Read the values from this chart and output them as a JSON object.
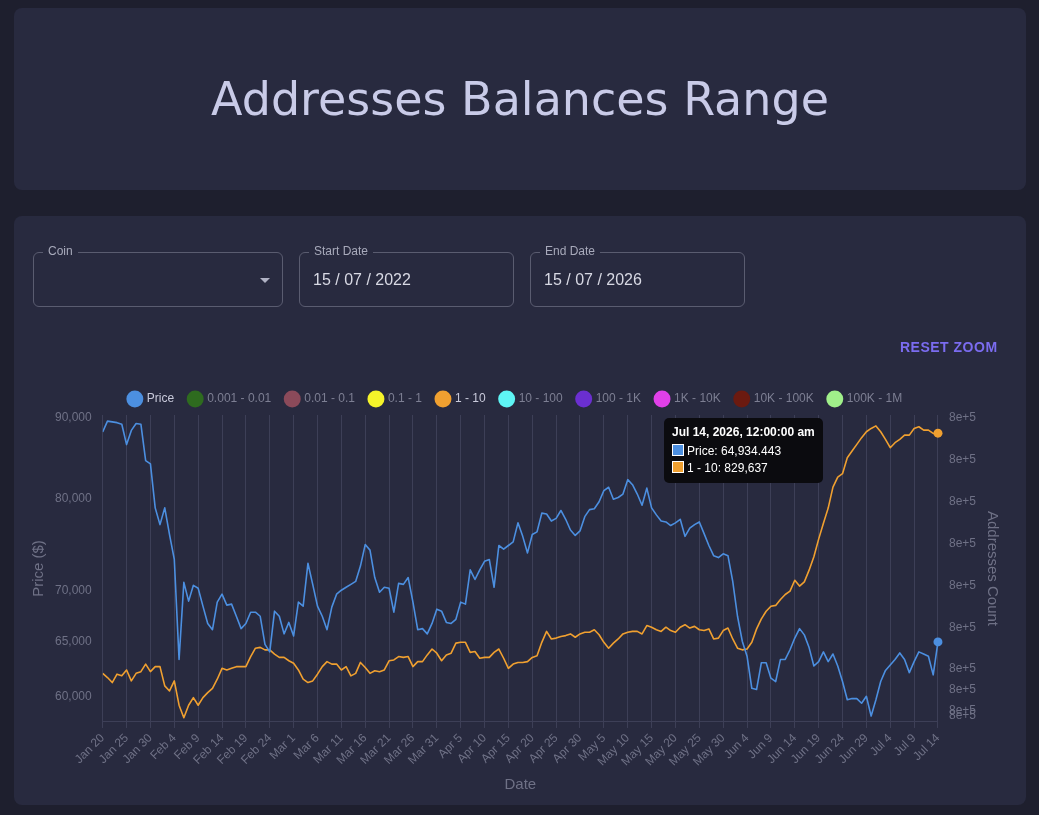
{
  "chart_data": {
    "type": "line",
    "title": "Addresses Balances Range",
    "xlabel": "Date",
    "ylabel": "Price ($)",
    "y2label": "Addresses Count",
    "annotations": [
      "Coin",
      "Start Date",
      "15 / 07 / 2022",
      "End Date",
      "15 / 07 / 2026",
      "RESET ZOOM",
      "Jul 14, 2026, 12:00:00 am",
      "Price: 64,934.443",
      "1 - 10: 829,637"
    ],
    "x": [
      "2026-01-20",
      "2026-01-21",
      "2026-01-22",
      "2026-01-23",
      "2026-01-24",
      "2026-01-25",
      "2026-01-26",
      "2026-01-27",
      "2026-01-28",
      "2026-01-29",
      "2026-01-30",
      "2026-01-31",
      "2026-02-01",
      "2026-02-02",
      "2026-02-03",
      "2026-02-04",
      "2026-02-05",
      "2026-02-06",
      "2026-02-07",
      "2026-02-08",
      "2026-02-09",
      "2026-02-10",
      "2026-02-11",
      "2026-02-12",
      "2026-02-13",
      "2026-02-14",
      "2026-02-15",
      "2026-02-16",
      "2026-02-17",
      "2026-02-18",
      "2026-02-19",
      "2026-02-20",
      "2026-02-21",
      "2026-02-22",
      "2026-02-23",
      "2026-02-24",
      "2026-02-25",
      "2026-02-26",
      "2026-02-27",
      "2026-02-28",
      "2026-03-01",
      "2026-03-02",
      "2026-03-03",
      "2026-03-04",
      "2026-03-05",
      "2026-03-06",
      "2026-03-07",
      "2026-03-08",
      "2026-03-09",
      "2026-03-10",
      "2026-03-11",
      "2026-03-12",
      "2026-03-13",
      "2026-03-14",
      "2026-03-15",
      "2026-03-16",
      "2026-03-17",
      "2026-03-18",
      "2026-03-19",
      "2026-03-20",
      "2026-03-21",
      "2026-03-22",
      "2026-03-23",
      "2026-03-24",
      "2026-03-25",
      "2026-03-26",
      "2026-03-27",
      "2026-03-28",
      "2026-03-29",
      "2026-03-30",
      "2026-03-31",
      "2026-04-01",
      "2026-04-02",
      "2026-04-03",
      "2026-04-04",
      "2026-04-05",
      "2026-04-06",
      "2026-04-07",
      "2026-04-08",
      "2026-04-09",
      "2026-04-10",
      "2026-04-11",
      "2026-04-12",
      "2026-04-13",
      "2026-04-14",
      "2026-04-15",
      "2026-04-16",
      "2026-04-17",
      "2026-04-18",
      "2026-04-19",
      "2026-04-20",
      "2026-04-21",
      "2026-04-22",
      "2026-04-23",
      "2026-04-24",
      "2026-04-25",
      "2026-04-26",
      "2026-04-27",
      "2026-04-28",
      "2026-04-29",
      "2026-04-30",
      "2026-05-01",
      "2026-05-02",
      "2026-05-03",
      "2026-05-04",
      "2026-05-05",
      "2026-05-06",
      "2026-05-07",
      "2026-05-08",
      "2026-05-09",
      "2026-05-10",
      "2026-05-11",
      "2026-05-12",
      "2026-05-13",
      "2026-05-14",
      "2026-05-15",
      "2026-05-16",
      "2026-05-17",
      "2026-05-18",
      "2026-05-19",
      "2026-05-20",
      "2026-05-21",
      "2026-05-22",
      "2026-05-23",
      "2026-05-24",
      "2026-05-25",
      "2026-05-26",
      "2026-05-27",
      "2026-05-28",
      "2026-05-29",
      "2026-05-30",
      "2026-05-31",
      "2026-06-01",
      "2026-06-02",
      "2026-06-03",
      "2026-06-04",
      "2026-06-05",
      "2026-06-06",
      "2026-06-07",
      "2026-06-08",
      "2026-06-09",
      "2026-06-10",
      "2026-06-11",
      "2026-06-12",
      "2026-06-13",
      "2026-06-14",
      "2026-06-15",
      "2026-06-16",
      "2026-06-17",
      "2026-06-18",
      "2026-06-19",
      "2026-06-20",
      "2026-06-21",
      "2026-06-22",
      "2026-06-23",
      "2026-06-24",
      "2026-06-25",
      "2026-06-26",
      "2026-06-27",
      "2026-06-28",
      "2026-06-29",
      "2026-06-30",
      "2026-07-01",
      "2026-07-02",
      "2026-07-03",
      "2026-07-04",
      "2026-07-05",
      "2026-07-06",
      "2026-07-07",
      "2026-07-08",
      "2026-07-09",
      "2026-07-10",
      "2026-07-11",
      "2026-07-12",
      "2026-07-13",
      "2026-07-14"
    ],
    "series": [
      {
        "name": "Price",
        "color": "#4c8fe0",
        "values": [
          88100,
          89500,
          89400,
          89300,
          89100,
          86500,
          88300,
          89200,
          89100,
          84500,
          84100,
          78900,
          77000,
          78900,
          75900,
          73200,
          63300,
          70800,
          68900,
          70500,
          70200,
          68400,
          66700,
          66100,
          68800,
          69600,
          68500,
          68600,
          67400,
          66200,
          66700,
          67800,
          67800,
          67400,
          64700,
          64000,
          67900,
          67400,
          65700,
          66800,
          65500,
          68800,
          68400,
          72800,
          70600,
          68400,
          67400,
          66100,
          68300,
          69600,
          70000,
          70300,
          70600,
          70900,
          72500,
          74800,
          74200,
          71300,
          69800,
          70300,
          70200,
          67800,
          70700,
          70600,
          71300,
          68800,
          66100,
          66200,
          65700,
          66700,
          68100,
          67900,
          66800,
          66700,
          67100,
          68800,
          68600,
          72100,
          71100,
          72100,
          73000,
          73200,
          70300,
          74700,
          74300,
          74700,
          75100,
          77200,
          75700,
          73900,
          75900,
          76200,
          78300,
          78200,
          77400,
          77700,
          78600,
          77600,
          76400,
          75800,
          76300,
          77900,
          78700,
          78800,
          79600,
          80900,
          81300,
          79900,
          80100,
          80500,
          82200,
          81600,
          80500,
          79200,
          81200,
          78900,
          78100,
          77400,
          77300,
          76900,
          77200,
          77600,
          75700,
          76600,
          77000,
          77300,
          76000,
          74700,
          73600,
          73400,
          73800,
          73600,
          70900,
          67400,
          65000,
          63600,
          60700,
          60600,
          63000,
          63000,
          61600,
          61300,
          63300,
          63300,
          64200,
          65300,
          66200,
          65600,
          64400,
          62700,
          63100,
          64000,
          63100,
          63800,
          62700,
          61300,
          59700,
          59800,
          59800,
          59400,
          60000,
          58300,
          59700,
          61300,
          62300,
          62800,
          63300,
          63900,
          63300,
          62100,
          63100,
          64000,
          63800,
          63600,
          61900,
          64934.443
        ]
      },
      {
        "name": "0.001 - 0.01",
        "color": "#2e6b1f",
        "values": [
          null,
          null,
          null,
          null,
          null,
          null,
          null,
          null,
          null,
          null,
          null,
          null,
          null,
          null,
          null,
          null,
          null,
          null,
          null,
          null,
          null,
          null,
          null,
          null,
          null,
          null,
          null,
          null,
          null,
          null,
          null,
          null,
          null,
          null,
          null,
          null,
          null,
          null,
          null,
          null,
          null,
          null,
          null,
          null,
          null,
          null,
          null,
          null,
          null,
          null,
          null,
          null,
          null,
          null,
          null,
          null,
          null,
          null,
          null,
          null,
          null,
          null,
          null,
          null,
          null,
          null,
          null,
          null,
          null,
          null,
          null,
          null,
          null,
          null,
          null,
          null,
          null,
          null,
          null,
          null,
          null,
          null,
          null,
          null,
          null,
          null,
          null,
          null,
          null,
          null,
          null,
          null,
          null,
          null,
          null,
          null,
          null,
          null,
          null,
          null,
          null,
          null,
          null,
          null,
          null,
          null,
          null,
          null,
          null,
          null,
          null,
          null,
          null,
          null,
          null,
          null,
          null,
          null,
          null,
          null,
          null,
          null,
          null,
          null,
          null,
          null,
          null,
          null,
          null,
          null,
          null,
          null,
          null,
          null,
          null,
          null,
          null,
          null,
          null,
          null,
          null,
          null,
          null,
          null,
          null,
          null,
          null,
          null,
          null,
          null,
          null,
          null,
          null,
          null,
          null,
          null,
          null,
          null,
          null,
          null,
          null,
          null,
          null,
          null,
          null,
          null,
          null,
          null,
          null,
          null,
          null,
          null,
          null,
          null,
          null,
          null
        ]
      },
      {
        "name": "0.01 - 0.1",
        "color": "#8b4a5a",
        "values": [
          null,
          null,
          null,
          null,
          null,
          null,
          null,
          null,
          null,
          null,
          null,
          null,
          null,
          null,
          null,
          null,
          null,
          null,
          null,
          null,
          null,
          null,
          null,
          null,
          null,
          null,
          null,
          null,
          null,
          null,
          null,
          null,
          null,
          null,
          null,
          null,
          null,
          null,
          null,
          null,
          null,
          null,
          null,
          null,
          null,
          null,
          null,
          null,
          null,
          null,
          null,
          null,
          null,
          null,
          null,
          null,
          null,
          null,
          null,
          null,
          null,
          null,
          null,
          null,
          null,
          null,
          null,
          null,
          null,
          null,
          null,
          null,
          null,
          null,
          null,
          null,
          null,
          null,
          null,
          null,
          null,
          null,
          null,
          null,
          null,
          null,
          null,
          null,
          null,
          null,
          null,
          null,
          null,
          null,
          null,
          null,
          null,
          null,
          null,
          null,
          null,
          null,
          null,
          null,
          null,
          null,
          null,
          null,
          null,
          null,
          null,
          null,
          null,
          null,
          null,
          null,
          null,
          null,
          null,
          null,
          null,
          null,
          null,
          null,
          null,
          null,
          null,
          null,
          null,
          null,
          null,
          null,
          null,
          null,
          null,
          null,
          null,
          null,
          null,
          null,
          null,
          null,
          null,
          null,
          null,
          null,
          null,
          null,
          null,
          null,
          null,
          null,
          null,
          null,
          null,
          null,
          null,
          null,
          null,
          null,
          null,
          null,
          null,
          null,
          null,
          null,
          null,
          null,
          null,
          null,
          null,
          null,
          null,
          null,
          null,
          null
        ]
      },
      {
        "name": "0.1 - 1",
        "color": "#f5f32a",
        "values": [
          null,
          null,
          null,
          null,
          null,
          null,
          null,
          null,
          null,
          null,
          null,
          null,
          null,
          null,
          null,
          null,
          null,
          null,
          null,
          null,
          null,
          null,
          null,
          null,
          null,
          null,
          null,
          null,
          null,
          null,
          null,
          null,
          null,
          null,
          null,
          null,
          null,
          null,
          null,
          null,
          null,
          null,
          null,
          null,
          null,
          null,
          null,
          null,
          null,
          null,
          null,
          null,
          null,
          null,
          null,
          null,
          null,
          null,
          null,
          null,
          null,
          null,
          null,
          null,
          null,
          null,
          null,
          null,
          null,
          null,
          null,
          null,
          null,
          null,
          null,
          null,
          null,
          null,
          null,
          null,
          null,
          null,
          null,
          null,
          null,
          null,
          null,
          null,
          null,
          null,
          null,
          null,
          null,
          null,
          null,
          null,
          null,
          null,
          null,
          null,
          null,
          null,
          null,
          null,
          null,
          null,
          null,
          null,
          null,
          null,
          null,
          null,
          null,
          null,
          null,
          null,
          null,
          null,
          null,
          null,
          null,
          null,
          null,
          null,
          null,
          null,
          null,
          null,
          null,
          null,
          null,
          null,
          null,
          null,
          null,
          null,
          null,
          null,
          null,
          null,
          null,
          null,
          null,
          null,
          null,
          null,
          null,
          null,
          null,
          null,
          null,
          null,
          null,
          null,
          null,
          null,
          null,
          null,
          null,
          null,
          null,
          null,
          null,
          null,
          null,
          null,
          null,
          null,
          null,
          null,
          null,
          null,
          null,
          null,
          null,
          null
        ]
      },
      {
        "name": "1 - 10",
        "color": "#f0a030",
        "axis": "y2",
        "values": [
          801000,
          800500,
          799900,
          800900,
          800700,
          801400,
          800100,
          801000,
          801200,
          802100,
          801200,
          801800,
          801800,
          799500,
          798900,
          800100,
          797200,
          795700,
          797200,
          798100,
          797200,
          798100,
          798700,
          799200,
          800300,
          801600,
          801400,
          801600,
          801800,
          801800,
          801800,
          803000,
          804000,
          804100,
          803800,
          803800,
          803300,
          802900,
          802900,
          802500,
          802200,
          801400,
          800300,
          799900,
          800100,
          800900,
          801800,
          802400,
          802100,
          802100,
          801400,
          801800,
          800700,
          801000,
          802300,
          801700,
          801000,
          801300,
          801200,
          801400,
          802500,
          802600,
          803000,
          802900,
          803000,
          801800,
          802400,
          802400,
          803200,
          803900,
          803400,
          802500,
          803200,
          803400,
          804600,
          804700,
          804700,
          803500,
          803600,
          802800,
          802900,
          802900,
          803500,
          803900,
          802800,
          801600,
          802100,
          802300,
          802300,
          802400,
          802900,
          803100,
          804700,
          806000,
          805100,
          805200,
          805400,
          805500,
          805700,
          805300,
          805700,
          805900,
          805900,
          806200,
          805600,
          804700,
          804000,
          804600,
          805100,
          805700,
          805900,
          806000,
          806000,
          805700,
          806700,
          806500,
          806200,
          806000,
          806500,
          806100,
          805900,
          806500,
          806800,
          806400,
          806600,
          806200,
          806100,
          806300,
          805100,
          805200,
          806100,
          806400,
          805100,
          804000,
          803800,
          803900,
          804700,
          806300,
          807500,
          808400,
          809000,
          809100,
          809800,
          810400,
          810800,
          812100,
          811400,
          811900,
          813300,
          814900,
          817000,
          818900,
          820700,
          823200,
          824400,
          824800,
          826700,
          827500,
          828300,
          829100,
          829800,
          830200,
          830500,
          829800,
          828900,
          827900,
          828500,
          828900,
          829400,
          829400,
          830200,
          830400,
          830000,
          830000,
          829600,
          829637
        ]
      },
      {
        "name": "10 - 100",
        "color": "#5ef5f5",
        "values": [
          null,
          null,
          null,
          null,
          null,
          null,
          null,
          null,
          null,
          null,
          null,
          null,
          null,
          null,
          null,
          null,
          null,
          null,
          null,
          null,
          null,
          null,
          null,
          null,
          null,
          null,
          null,
          null,
          null,
          null,
          null,
          null,
          null,
          null,
          null,
          null,
          null,
          null,
          null,
          null,
          null,
          null,
          null,
          null,
          null,
          null,
          null,
          null,
          null,
          null,
          null,
          null,
          null,
          null,
          null,
          null,
          null,
          null,
          null,
          null,
          null,
          null,
          null,
          null,
          null,
          null,
          null,
          null,
          null,
          null,
          null,
          null,
          null,
          null,
          null,
          null,
          null,
          null,
          null,
          null,
          null,
          null,
          null,
          null,
          null,
          null,
          null,
          null,
          null,
          null,
          null,
          null,
          null,
          null,
          null,
          null,
          null,
          null,
          null,
          null,
          null,
          null,
          null,
          null,
          null,
          null,
          null,
          null,
          null,
          null,
          null,
          null,
          null,
          null,
          null,
          null,
          null,
          null,
          null,
          null,
          null,
          null,
          null,
          null,
          null,
          null,
          null,
          null,
          null,
          null,
          null,
          null,
          null,
          null,
          null,
          null,
          null,
          null,
          null,
          null,
          null,
          null,
          null,
          null,
          null,
          null,
          null,
          null,
          null,
          null,
          null,
          null,
          null,
          null,
          null,
          null,
          null,
          null,
          null,
          null,
          null,
          null,
          null,
          null,
          null,
          null,
          null,
          null,
          null,
          null,
          null,
          null,
          null,
          null,
          null,
          null
        ]
      },
      {
        "name": "100 - 1K",
        "color": "#6b2fd0",
        "values": [
          null,
          null,
          null,
          null,
          null,
          null,
          null,
          null,
          null,
          null,
          null,
          null,
          null,
          null,
          null,
          null,
          null,
          null,
          null,
          null,
          null,
          null,
          null,
          null,
          null,
          null,
          null,
          null,
          null,
          null,
          null,
          null,
          null,
          null,
          null,
          null,
          null,
          null,
          null,
          null,
          null,
          null,
          null,
          null,
          null,
          null,
          null,
          null,
          null,
          null,
          null,
          null,
          null,
          null,
          null,
          null,
          null,
          null,
          null,
          null,
          null,
          null,
          null,
          null,
          null,
          null,
          null,
          null,
          null,
          null,
          null,
          null,
          null,
          null,
          null,
          null,
          null,
          null,
          null,
          null,
          null,
          null,
          null,
          null,
          null,
          null,
          null,
          null,
          null,
          null,
          null,
          null,
          null,
          null,
          null,
          null,
          null,
          null,
          null,
          null,
          null,
          null,
          null,
          null,
          null,
          null,
          null,
          null,
          null,
          null,
          null,
          null,
          null,
          null,
          null,
          null,
          null,
          null,
          null,
          null,
          null,
          null,
          null,
          null,
          null,
          null,
          null,
          null,
          null,
          null,
          null,
          null,
          null,
          null,
          null,
          null,
          null,
          null,
          null,
          null,
          null,
          null,
          null,
          null,
          null,
          null,
          null,
          null,
          null,
          null,
          null,
          null,
          null,
          null,
          null,
          null,
          null,
          null,
          null,
          null,
          null,
          null,
          null,
          null,
          null,
          null,
          null,
          null,
          null,
          null,
          null,
          null,
          null,
          null,
          null,
          null
        ]
      },
      {
        "name": "1K - 10K",
        "color": "#e040e8",
        "values": [
          null,
          null,
          null,
          null,
          null,
          null,
          null,
          null,
          null,
          null,
          null,
          null,
          null,
          null,
          null,
          null,
          null,
          null,
          null,
          null,
          null,
          null,
          null,
          null,
          null,
          null,
          null,
          null,
          null,
          null,
          null,
          null,
          null,
          null,
          null,
          null,
          null,
          null,
          null,
          null,
          null,
          null,
          null,
          null,
          null,
          null,
          null,
          null,
          null,
          null,
          null,
          null,
          null,
          null,
          null,
          null,
          null,
          null,
          null,
          null,
          null,
          null,
          null,
          null,
          null,
          null,
          null,
          null,
          null,
          null,
          null,
          null,
          null,
          null,
          null,
          null,
          null,
          null,
          null,
          null,
          null,
          null,
          null,
          null,
          null,
          null,
          null,
          null,
          null,
          null,
          null,
          null,
          null,
          null,
          null,
          null,
          null,
          null,
          null,
          null,
          null,
          null,
          null,
          null,
          null,
          null,
          null,
          null,
          null,
          null,
          null,
          null,
          null,
          null,
          null,
          null,
          null,
          null,
          null,
          null,
          null,
          null,
          null,
          null,
          null,
          null,
          null,
          null,
          null,
          null,
          null,
          null,
          null,
          null,
          null,
          null,
          null,
          null,
          null,
          null,
          null,
          null,
          null,
          null,
          null,
          null,
          null,
          null,
          null,
          null,
          null,
          null,
          null,
          null,
          null,
          null,
          null,
          null,
          null,
          null,
          null,
          null,
          null,
          null,
          null,
          null,
          null,
          null,
          null,
          null,
          null,
          null,
          null,
          null,
          null,
          null
        ]
      },
      {
        "name": "10K - 100K",
        "color": "#6b1a10",
        "values": [
          null,
          null,
          null,
          null,
          null,
          null,
          null,
          null,
          null,
          null,
          null,
          null,
          null,
          null,
          null,
          null,
          null,
          null,
          null,
          null,
          null,
          null,
          null,
          null,
          null,
          null,
          null,
          null,
          null,
          null,
          null,
          null,
          null,
          null,
          null,
          null,
          null,
          null,
          null,
          null,
          null,
          null,
          null,
          null,
          null,
          null,
          null,
          null,
          null,
          null,
          null,
          null,
          null,
          null,
          null,
          null,
          null,
          null,
          null,
          null,
          null,
          null,
          null,
          null,
          null,
          null,
          null,
          null,
          null,
          null,
          null,
          null,
          null,
          null,
          null,
          null,
          null,
          null,
          null,
          null,
          null,
          null,
          null,
          null,
          null,
          null,
          null,
          null,
          null,
          null,
          null,
          null,
          null,
          null,
          null,
          null,
          null,
          null,
          null,
          null,
          null,
          null,
          null,
          null,
          null,
          null,
          null,
          null,
          null,
          null,
          null,
          null,
          null,
          null,
          null,
          null,
          null,
          null,
          null,
          null,
          null,
          null,
          null,
          null,
          null,
          null,
          null,
          null,
          null,
          null,
          null,
          null,
          null,
          null,
          null,
          null,
          null,
          null,
          null,
          null,
          null,
          null,
          null,
          null,
          null,
          null,
          null,
          null,
          null,
          null,
          null,
          null,
          null,
          null,
          null,
          null,
          null,
          null,
          null,
          null,
          null,
          null,
          null,
          null,
          null,
          null,
          null,
          null,
          null,
          null,
          null,
          null,
          null,
          null,
          null,
          null
        ]
      },
      {
        "name": "100K - 1M",
        "color": "#a0f08a",
        "values": [
          null,
          null,
          null,
          null,
          null,
          null,
          null,
          null,
          null,
          null,
          null,
          null,
          null,
          null,
          null,
          null,
          null,
          null,
          null,
          null,
          null,
          null,
          null,
          null,
          null,
          null,
          null,
          null,
          null,
          null,
          null,
          null,
          null,
          null,
          null,
          null,
          null,
          null,
          null,
          null,
          null,
          null,
          null,
          null,
          null,
          null,
          null,
          null,
          null,
          null,
          null,
          null,
          null,
          null,
          null,
          null,
          null,
          null,
          null,
          null,
          null,
          null,
          null,
          null,
          null,
          null,
          null,
          null,
          null,
          null,
          null,
          null,
          null,
          null,
          null,
          null,
          null,
          null,
          null,
          null,
          null,
          null,
          null,
          null,
          null,
          null,
          null,
          null,
          null,
          null,
          null,
          null,
          null,
          null,
          null,
          null,
          null,
          null,
          null,
          null,
          null,
          null,
          null,
          null,
          null,
          null,
          null,
          null,
          null,
          null,
          null,
          null,
          null,
          null,
          null,
          null,
          null,
          null,
          null,
          null,
          null,
          null,
          null,
          null,
          null,
          null,
          null,
          null,
          null,
          null,
          null,
          null,
          null,
          null,
          null,
          null,
          null,
          null,
          null,
          null,
          null,
          null,
          null,
          null,
          null,
          null,
          null,
          null,
          null,
          null,
          null,
          null,
          null,
          null,
          null,
          null,
          null,
          null,
          null,
          null,
          null,
          null,
          null,
          null,
          null,
          null,
          null,
          null,
          null,
          null,
          null,
          null,
          null,
          null,
          null,
          null
        ]
      }
    ],
    "xlim": [
      "2026-01-20",
      "2026-07-14"
    ],
    "xticks": [
      {
        "value": "2026-01-20",
        "label": "Jan 20"
      },
      {
        "value": "2026-01-25",
        "label": "Jan 25"
      },
      {
        "value": "2026-01-30",
        "label": "Jan 30"
      },
      {
        "value": "2026-02-04",
        "label": "Feb 4"
      },
      {
        "value": "2026-02-09",
        "label": "Feb 9"
      },
      {
        "value": "2026-02-14",
        "label": "Feb 14"
      },
      {
        "value": "2026-02-19",
        "label": "Feb 19"
      },
      {
        "value": "2026-02-24",
        "label": "Feb 24"
      },
      {
        "value": "2026-03-01",
        "label": "Mar 1"
      },
      {
        "value": "2026-03-06",
        "label": "Mar 6"
      },
      {
        "value": "2026-03-11",
        "label": "Mar 11"
      },
      {
        "value": "2026-03-16",
        "label": "Mar 16"
      },
      {
        "value": "2026-03-21",
        "label": "Mar 21"
      },
      {
        "value": "2026-03-26",
        "label": "Mar 26"
      },
      {
        "value": "2026-03-31",
        "label": "Mar 31"
      },
      {
        "value": "2026-04-05",
        "label": "Apr 5"
      },
      {
        "value": "2026-04-10",
        "label": "Apr 10"
      },
      {
        "value": "2026-04-15",
        "label": "Apr 15"
      },
      {
        "value": "2026-04-20",
        "label": "Apr 20"
      },
      {
        "value": "2026-04-25",
        "label": "Apr 25"
      },
      {
        "value": "2026-04-30",
        "label": "Apr 30"
      },
      {
        "value": "2026-05-05",
        "label": "May 5"
      },
      {
        "value": "2026-05-10",
        "label": "May 10"
      },
      {
        "value": "2026-05-15",
        "label": "May 15"
      },
      {
        "value": "2026-05-20",
        "label": "May 20"
      },
      {
        "value": "2026-05-25",
        "label": "May 25"
      },
      {
        "value": "2026-05-30",
        "label": "May 30"
      },
      {
        "value": "2026-06-04",
        "label": "Jun 4"
      },
      {
        "value": "2026-06-09",
        "label": "Jun 9"
      },
      {
        "value": "2026-06-14",
        "label": "Jun 14"
      },
      {
        "value": "2026-06-19",
        "label": "Jun 19"
      },
      {
        "value": "2026-06-24",
        "label": "Jun 24"
      },
      {
        "value": "2026-06-29",
        "label": "Jun 29"
      },
      {
        "value": "2026-07-04",
        "label": "Jul 4"
      },
      {
        "value": "2026-07-09",
        "label": "Jul 9"
      },
      {
        "value": "2026-07-14",
        "label": "Jul 14"
      }
    ],
    "ylim": [
      57800,
      90300
    ],
    "log": "y",
    "yticks": [
      {
        "value": 60000,
        "label": "60,000"
      },
      {
        "value": 65000,
        "label": "65,000"
      },
      {
        "value": 70000,
        "label": "70,000"
      },
      {
        "value": 80000,
        "label": "80,000"
      },
      {
        "value": 90000,
        "label": "90,000"
      }
    ],
    "y2lim": [
      795200,
      831800
    ],
    "y2ticks": [
      {
        "value": 831500,
        "label": "8e+5"
      },
      {
        "value": 826500,
        "label": "8e+5"
      },
      {
        "value": 821500,
        "label": "8e+5"
      },
      {
        "value": 816500,
        "label": "8e+5"
      },
      {
        "value": 811500,
        "label": "8e+5"
      },
      {
        "value": 806500,
        "label": "8e+5"
      },
      {
        "value": 801500,
        "label": "8e+5"
      },
      {
        "value": 799000,
        "label": "8e+5"
      },
      {
        "value": 796500,
        "label": "8e+5"
      },
      {
        "value": 796000,
        "label": "8e+5"
      }
    ],
    "grid": "x",
    "legend": "top",
    "marker": "none",
    "line_style": "solid"
  }
}
